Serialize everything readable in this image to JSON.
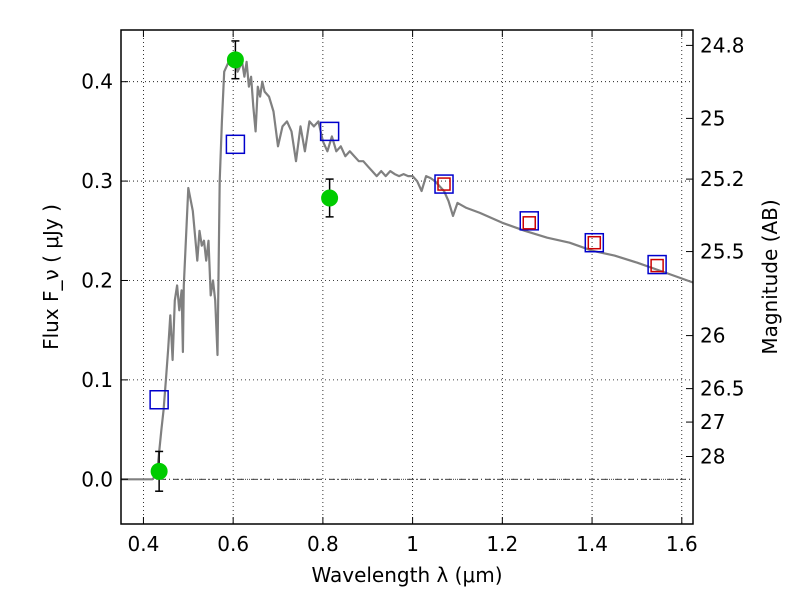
{
  "chart_data": {
    "type": "scatter",
    "xlabel": "Wavelength  λ (μm)",
    "ylabel": "Flux  F_ν  ( μJy )",
    "y2label": "Magnitude (AB)",
    "xlim": [
      0.35,
      1.625
    ],
    "ylim": [
      -0.045,
      0.452
    ],
    "grid": true,
    "x_ticks": [
      0.4,
      0.6,
      0.8,
      1.0,
      1.2,
      1.4,
      1.6
    ],
    "x_tick_labels": [
      "0.4",
      "0.6",
      "0.8",
      "1",
      "1.2",
      "1.4",
      "1.6"
    ],
    "y_ticks": [
      0.0,
      0.1,
      0.2,
      0.3,
      0.4
    ],
    "y_tick_labels": [
      "0.0",
      "0.1",
      "0.2",
      "0.3",
      "0.4"
    ],
    "y2_ticks": [
      24.8,
      25,
      25.2,
      25.5,
      26,
      26.5,
      27,
      28
    ],
    "y2_tick_labels": [
      "24.8",
      "25",
      "25.2",
      "25.5",
      "26",
      "26.5",
      "27",
      "28"
    ],
    "series": [
      {
        "kind": "spectrum",
        "color": "#808080",
        "x": [
          0.35,
          0.42,
          0.43,
          0.44,
          0.445,
          0.45,
          0.455,
          0.46,
          0.465,
          0.47,
          0.475,
          0.48,
          0.485,
          0.488,
          0.49,
          0.5,
          0.51,
          0.52,
          0.525,
          0.53,
          0.535,
          0.54,
          0.545,
          0.55,
          0.555,
          0.56,
          0.565,
          0.57,
          0.575,
          0.58,
          0.585,
          0.59,
          0.595,
          0.6,
          0.605,
          0.61,
          0.615,
          0.62,
          0.625,
          0.63,
          0.635,
          0.64,
          0.645,
          0.65,
          0.655,
          0.66,
          0.665,
          0.67,
          0.68,
          0.69,
          0.7,
          0.71,
          0.72,
          0.73,
          0.74,
          0.75,
          0.76,
          0.77,
          0.78,
          0.79,
          0.8,
          0.81,
          0.82,
          0.83,
          0.84,
          0.85,
          0.86,
          0.87,
          0.88,
          0.89,
          0.9,
          0.91,
          0.92,
          0.93,
          0.94,
          0.95,
          0.96,
          0.97,
          0.98,
          0.99,
          1.0,
          1.01,
          1.02,
          1.03,
          1.04,
          1.05,
          1.06,
          1.07,
          1.08,
          1.09,
          1.1,
          1.12,
          1.15,
          1.2,
          1.25,
          1.3,
          1.35,
          1.4,
          1.45,
          1.5,
          1.55,
          1.6,
          1.625
        ],
        "y": [
          0.0,
          0.0,
          0.005,
          0.05,
          0.07,
          0.1,
          0.13,
          0.165,
          0.12,
          0.18,
          0.195,
          0.17,
          0.19,
          0.128,
          0.195,
          0.293,
          0.27,
          0.22,
          0.25,
          0.235,
          0.24,
          0.22,
          0.24,
          0.185,
          0.2,
          0.18,
          0.125,
          0.3,
          0.36,
          0.41,
          0.415,
          0.42,
          0.425,
          0.418,
          0.42,
          0.41,
          0.415,
          0.42,
          0.405,
          0.42,
          0.395,
          0.405,
          0.375,
          0.35,
          0.395,
          0.385,
          0.4,
          0.39,
          0.385,
          0.37,
          0.335,
          0.355,
          0.36,
          0.35,
          0.32,
          0.355,
          0.33,
          0.36,
          0.355,
          0.36,
          0.34,
          0.33,
          0.345,
          0.33,
          0.335,
          0.325,
          0.33,
          0.325,
          0.32,
          0.32,
          0.315,
          0.31,
          0.305,
          0.31,
          0.305,
          0.31,
          0.307,
          0.305,
          0.307,
          0.305,
          0.305,
          0.3,
          0.29,
          0.305,
          0.303,
          0.3,
          0.295,
          0.29,
          0.28,
          0.265,
          0.278,
          0.273,
          0.268,
          0.258,
          0.25,
          0.243,
          0.238,
          0.23,
          0.225,
          0.218,
          0.21,
          0.202,
          0.198
        ]
      },
      {
        "kind": "observed",
        "marker": "circle",
        "color": "#00cc00",
        "x": [
          0.435,
          0.605,
          0.815
        ],
        "y": [
          0.008,
          0.422,
          0.283
        ],
        "yerr": [
          0.02,
          0.019,
          0.019
        ]
      },
      {
        "kind": "model-photometry",
        "marker": "open-square",
        "color": "#0000cc",
        "x": [
          0.435,
          0.605,
          0.815,
          1.07,
          1.26,
          1.405,
          1.545
        ],
        "y": [
          0.08,
          0.337,
          0.35,
          0.297,
          0.26,
          0.238,
          0.216
        ]
      },
      {
        "kind": "model-photometry-small",
        "marker": "open-square",
        "color": "#cc0000",
        "x": [
          1.07,
          1.26,
          1.405,
          1.545
        ],
        "y": [
          0.297,
          0.258,
          0.238,
          0.215
        ]
      }
    ]
  }
}
